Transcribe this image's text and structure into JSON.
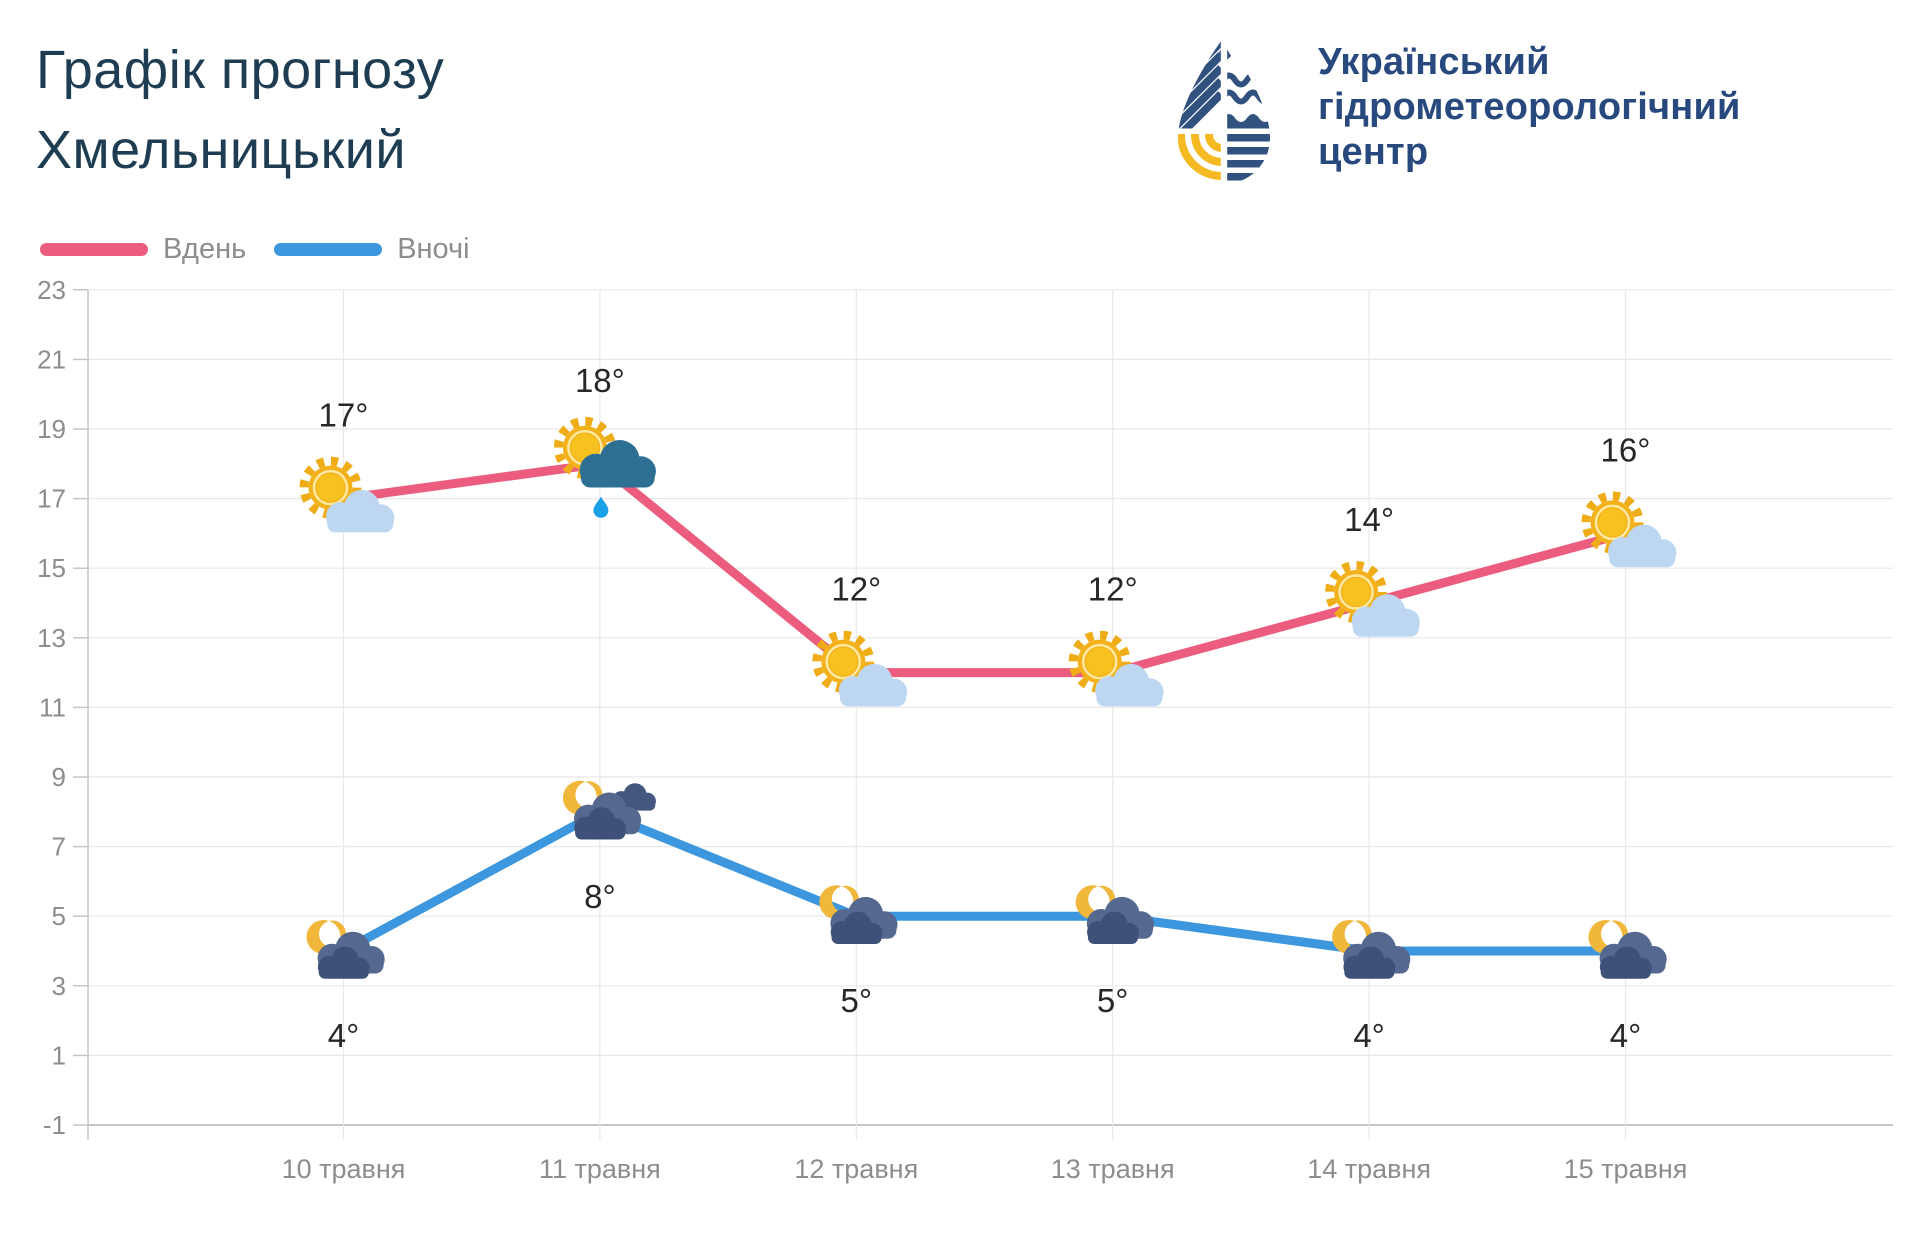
{
  "header": {
    "title_line1": "Графік прогнозу",
    "title_line2": "Хмельницький",
    "org_line1": "Український",
    "org_line2": "гідрометеорологічний",
    "org_line3": "центр"
  },
  "legend": [
    {
      "label": "Вдень",
      "color": "#ec5c7e"
    },
    {
      "label": "Вночі",
      "color": "#3c97de"
    }
  ],
  "chart_data": {
    "type": "line",
    "categories": [
      "10 травня",
      "11 травня",
      "12 травня",
      "13 травня",
      "14 травня",
      "15 травня"
    ],
    "series": [
      {
        "name": "Вдень",
        "color": "#ec5c7e",
        "values": [
          17,
          18,
          12,
          12,
          14,
          16
        ],
        "labels": [
          "17°",
          "18°",
          "12°",
          "12°",
          "14°",
          "16°"
        ],
        "icons": [
          "sun-cloud",
          "sun-raincloud",
          "sun-cloud",
          "sun-cloud",
          "sun-cloud",
          "sun-cloud"
        ],
        "label_position": "above"
      },
      {
        "name": "Вночі",
        "color": "#3c97de",
        "values": [
          4,
          8,
          5,
          5,
          4,
          4
        ],
        "labels": [
          "4°",
          "8°",
          "5°",
          "5°",
          "4°",
          "4°"
        ],
        "icons": [
          "moon-cloud",
          "moon-clouds",
          "moon-cloud",
          "moon-cloud",
          "moon-cloud",
          "moon-cloud"
        ],
        "label_position": "below"
      }
    ],
    "yticks": [
      -1,
      1,
      3,
      5,
      7,
      9,
      11,
      13,
      15,
      17,
      19,
      21,
      23
    ],
    "ylim": [
      -1,
      23
    ],
    "grid": true,
    "legend_position": "top-left",
    "xlabel": "",
    "ylabel": ""
  },
  "colors": {
    "grid": "#e8e8e8",
    "axis": "#c5c5c5",
    "tick_text": "#8d8d8d",
    "value_text": "#272727",
    "title_text": "#1e3d53",
    "org_text": "#27497e",
    "sun": "#f3b11c",
    "day_cloud": "#bdd7f2",
    "rain_cloud": "#2e7093",
    "rain_drop": "#19a0e6",
    "moon": "#f1b73a",
    "night_cloud_back": "#55688f",
    "night_cloud_front": "#3e5279",
    "logo_navy": "#31517e",
    "logo_yellow": "#f5b921"
  }
}
